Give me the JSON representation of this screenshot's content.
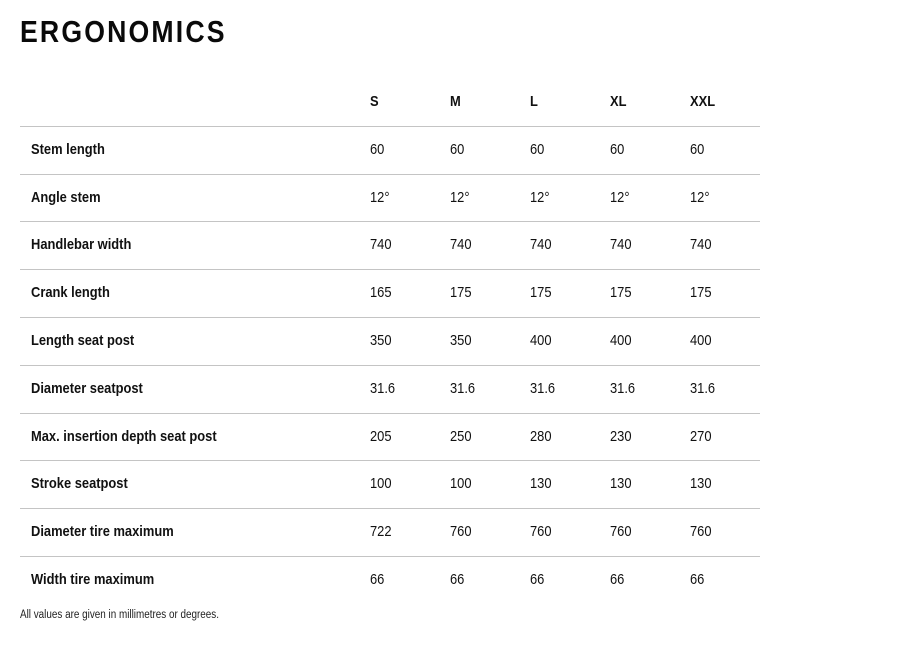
{
  "title": "ERGONOMICS",
  "sizes": [
    "S",
    "M",
    "L",
    "XL",
    "XXL"
  ],
  "rows": [
    {
      "label": "Stem length",
      "values": [
        "60",
        "60",
        "60",
        "60",
        "60"
      ]
    },
    {
      "label": "Angle stem",
      "values": [
        "12°",
        "12°",
        "12°",
        "12°",
        "12°"
      ]
    },
    {
      "label": "Handlebar width",
      "values": [
        "740",
        "740",
        "740",
        "740",
        "740"
      ]
    },
    {
      "label": "Crank length",
      "values": [
        "165",
        "175",
        "175",
        "175",
        "175"
      ]
    },
    {
      "label": "Length seat post",
      "values": [
        "350",
        "350",
        "400",
        "400",
        "400"
      ]
    },
    {
      "label": "Diameter seatpost",
      "values": [
        "31.6",
        "31.6",
        "31.6",
        "31.6",
        "31.6"
      ]
    },
    {
      "label": "Max. insertion depth seat post",
      "values": [
        "205",
        "250",
        "280",
        "230",
        "270"
      ]
    },
    {
      "label": "Stroke seatpost",
      "values": [
        "100",
        "100",
        "130",
        "130",
        "130"
      ]
    },
    {
      "label": "Diameter tire maximum",
      "values": [
        "722",
        "760",
        "760",
        "760",
        "760"
      ]
    },
    {
      "label": "Width tire maximum",
      "values": [
        "66",
        "66",
        "66",
        "66",
        "66"
      ]
    }
  ],
  "footnote": "All values are given in millimetres or degrees."
}
